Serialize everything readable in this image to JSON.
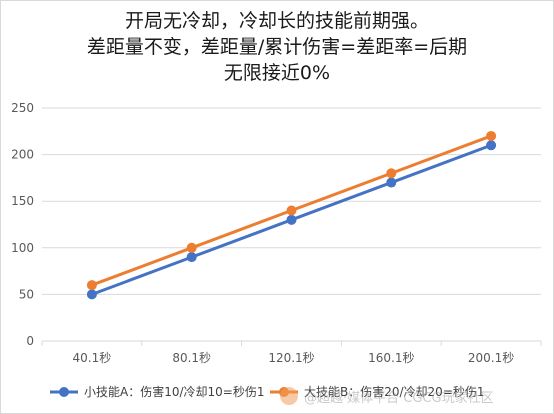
{
  "chart_data": {
    "type": "line",
    "title_lines": [
      "开局无冷却，冷却长的技能前期强。",
      "差距量不变，差距量/累计伤害=差距率=后期",
      "无限接近0%"
    ],
    "categories": [
      "40.1秒",
      "80.1秒",
      "120.1秒",
      "160.1秒",
      "200.1秒"
    ],
    "series": [
      {
        "name": "小技能A：伤害10/冷却10=秒伤1",
        "values": [
          50,
          90,
          130,
          170,
          210
        ],
        "color": "#4472c4"
      },
      {
        "name": "大技能B：伤害20/冷却20=秒伤1",
        "values": [
          60,
          100,
          140,
          180,
          220
        ],
        "color": "#ed7d31"
      }
    ],
    "ylim": [
      0,
      250
    ],
    "yticks": [
      0,
      50,
      100,
      150,
      200,
      250
    ],
    "grid": true,
    "legend_position": "bottom",
    "xlabel": "",
    "ylabel": ""
  },
  "watermark": "@超越·媒体平台 CGCG玩家社区"
}
